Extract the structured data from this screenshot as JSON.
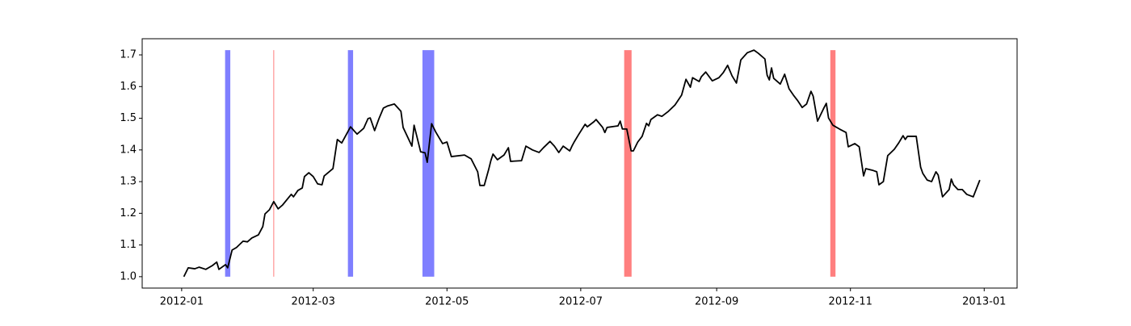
{
  "chart_data": {
    "type": "line",
    "x": [
      "2012-01-02",
      "2012-01-04",
      "2012-01-07",
      "2012-01-09",
      "2012-01-12",
      "2012-01-15",
      "2012-01-17",
      "2012-01-18",
      "2012-01-21",
      "2012-01-22",
      "2012-01-24",
      "2012-01-26",
      "2012-01-29",
      "2012-01-31",
      "2012-02-02",
      "2012-02-05",
      "2012-02-07",
      "2012-02-08",
      "2012-02-10",
      "2012-02-12",
      "2012-02-14",
      "2012-02-16",
      "2012-02-20",
      "2012-02-21",
      "2012-02-23",
      "2012-02-25",
      "2012-02-26",
      "2012-02-28",
      "2012-03-01",
      "2012-03-03",
      "2012-03-05",
      "2012-03-06",
      "2012-03-10",
      "2012-03-12",
      "2012-03-14",
      "2012-03-18",
      "2012-03-21",
      "2012-03-24",
      "2012-03-26",
      "2012-03-27",
      "2012-03-29",
      "2012-03-31",
      "2012-04-02",
      "2012-04-04",
      "2012-04-07",
      "2012-04-10",
      "2012-04-11",
      "2012-04-15",
      "2012-04-16",
      "2012-04-19",
      "2012-04-21",
      "2012-04-22",
      "2012-04-24",
      "2012-04-26",
      "2012-04-29",
      "2012-05-01",
      "2012-05-03",
      "2012-05-09",
      "2012-05-12",
      "2012-05-15",
      "2012-05-16",
      "2012-05-18",
      "2012-05-20",
      "2012-05-21",
      "2012-05-22",
      "2012-05-24",
      "2012-05-27",
      "2012-05-29",
      "2012-05-30",
      "2012-06-04",
      "2012-06-05",
      "2012-06-06",
      "2012-06-09",
      "2012-06-12",
      "2012-06-14",
      "2012-06-17",
      "2012-06-19",
      "2012-06-21",
      "2012-06-23",
      "2012-06-26",
      "2012-06-27",
      "2012-06-28",
      "2012-06-30",
      "2012-07-03",
      "2012-07-04",
      "2012-07-07",
      "2012-07-08",
      "2012-07-11",
      "2012-07-12",
      "2012-07-13",
      "2012-07-18",
      "2012-07-19",
      "2012-07-20",
      "2012-07-22",
      "2012-07-24",
      "2012-07-25",
      "2012-07-27",
      "2012-07-29",
      "2012-07-31",
      "2012-08-01",
      "2012-08-02",
      "2012-08-05",
      "2012-08-07",
      "2012-08-10",
      "2012-08-13",
      "2012-08-16",
      "2012-08-18",
      "2012-08-20",
      "2012-08-21",
      "2012-08-24",
      "2012-08-25",
      "2012-08-27",
      "2012-08-30",
      "2012-09-02",
      "2012-09-04",
      "2012-09-06",
      "2012-09-08",
      "2012-09-10",
      "2012-09-12",
      "2012-09-15",
      "2012-09-18",
      "2012-09-20",
      "2012-09-23",
      "2012-09-24",
      "2012-09-25",
      "2012-09-26",
      "2012-09-27",
      "2012-09-30",
      "2012-10-02",
      "2012-10-04",
      "2012-10-06",
      "2012-10-08",
      "2012-10-10",
      "2012-10-12",
      "2012-10-14",
      "2012-10-15",
      "2012-10-17",
      "2012-10-20",
      "2012-10-21",
      "2012-10-22",
      "2012-10-24",
      "2012-10-27",
      "2012-10-30",
      "2012-10-31",
      "2012-11-03",
      "2012-11-05",
      "2012-11-07",
      "2012-11-08",
      "2012-11-11",
      "2012-11-13",
      "2012-11-14",
      "2012-11-16",
      "2012-11-18",
      "2012-11-21",
      "2012-11-23",
      "2012-11-25",
      "2012-11-26",
      "2012-11-27",
      "2012-12-01",
      "2012-12-03",
      "2012-12-04",
      "2012-12-06",
      "2012-12-08",
      "2012-12-10",
      "2012-12-11",
      "2012-12-13",
      "2012-12-16",
      "2012-12-17",
      "2012-12-18",
      "2012-12-20",
      "2012-12-22",
      "2012-12-24",
      "2012-12-27",
      "2012-12-30"
    ],
    "series": [
      {
        "color": "#000000",
        "values": [
          1.0,
          1.028,
          1.025,
          1.03,
          1.023,
          1.035,
          1.046,
          1.023,
          1.038,
          1.028,
          1.084,
          1.092,
          1.112,
          1.11,
          1.122,
          1.132,
          1.158,
          1.198,
          1.211,
          1.237,
          1.214,
          1.226,
          1.26,
          1.252,
          1.272,
          1.28,
          1.316,
          1.328,
          1.316,
          1.293,
          1.29,
          1.318,
          1.341,
          1.433,
          1.422,
          1.473,
          1.45,
          1.468,
          1.499,
          1.501,
          1.461,
          1.499,
          1.532,
          1.539,
          1.545,
          1.522,
          1.471,
          1.412,
          1.478,
          1.394,
          1.391,
          1.361,
          1.483,
          1.455,
          1.42,
          1.425,
          1.379,
          1.384,
          1.372,
          1.331,
          1.288,
          1.288,
          1.338,
          1.366,
          1.387,
          1.369,
          1.384,
          1.407,
          1.364,
          1.366,
          1.389,
          1.412,
          1.4,
          1.392,
          1.407,
          1.427,
          1.412,
          1.392,
          1.412,
          1.397,
          1.412,
          1.425,
          1.448,
          1.481,
          1.473,
          1.489,
          1.496,
          1.471,
          1.455,
          1.471,
          1.476,
          1.491,
          1.466,
          1.466,
          1.397,
          1.397,
          1.425,
          1.443,
          1.484,
          1.476,
          1.496,
          1.511,
          1.506,
          1.522,
          1.542,
          1.573,
          1.623,
          1.598,
          1.628,
          1.616,
          1.631,
          1.646,
          1.618,
          1.628,
          1.644,
          1.667,
          1.634,
          1.611,
          1.684,
          1.707,
          1.715,
          1.705,
          1.687,
          1.636,
          1.621,
          1.659,
          1.626,
          1.608,
          1.639,
          1.593,
          1.573,
          1.555,
          1.534,
          1.545,
          1.585,
          1.57,
          1.491,
          1.534,
          1.547,
          1.501,
          1.478,
          1.466,
          1.455,
          1.41,
          1.42,
          1.41,
          1.318,
          1.341,
          1.336,
          1.331,
          1.29,
          1.3,
          1.382,
          1.402,
          1.422,
          1.445,
          1.433,
          1.443,
          1.443,
          1.346,
          1.326,
          1.305,
          1.3,
          1.331,
          1.321,
          1.252,
          1.275,
          1.308,
          1.29,
          1.275,
          1.275,
          1.26,
          1.252,
          1.305
        ]
      }
    ],
    "spans": [
      {
        "start": "2012-01-21",
        "end": "2012-01-23",
        "color": "#0000ff"
      },
      {
        "start": "2012-02-12",
        "end": "2012-02-12",
        "color": "#ff0000"
      },
      {
        "start": "2012-03-17",
        "end": "2012-03-19",
        "color": "#0000ff"
      },
      {
        "start": "2012-04-20",
        "end": "2012-04-25",
        "color": "#0000ff"
      },
      {
        "start": "2012-07-21",
        "end": "2012-07-24",
        "color": "#ff0000"
      },
      {
        "start": "2012-10-23",
        "end": "2012-10-25",
        "color": "#ff0000"
      }
    ],
    "span_alpha": 0.5,
    "xlim": [
      "2011-12-14",
      "2013-01-16"
    ],
    "xticks": [
      {
        "value": "2012-01-01",
        "label": "2012-01"
      },
      {
        "value": "2012-03-01",
        "label": "2012-03"
      },
      {
        "value": "2012-05-01",
        "label": "2012-05"
      },
      {
        "value": "2012-07-01",
        "label": "2012-07"
      },
      {
        "value": "2012-09-01",
        "label": "2012-09"
      },
      {
        "value": "2012-11-01",
        "label": "2012-11"
      },
      {
        "value": "2013-01-01",
        "label": "2013-01"
      }
    ],
    "ylim": [
      0.964,
      1.751
    ],
    "yticks": [
      {
        "value": 1,
        "label": "1.0"
      },
      1.1,
      1.2,
      1.3,
      1.4,
      1.5,
      1.6,
      1.7
    ],
    "grid": false
  }
}
